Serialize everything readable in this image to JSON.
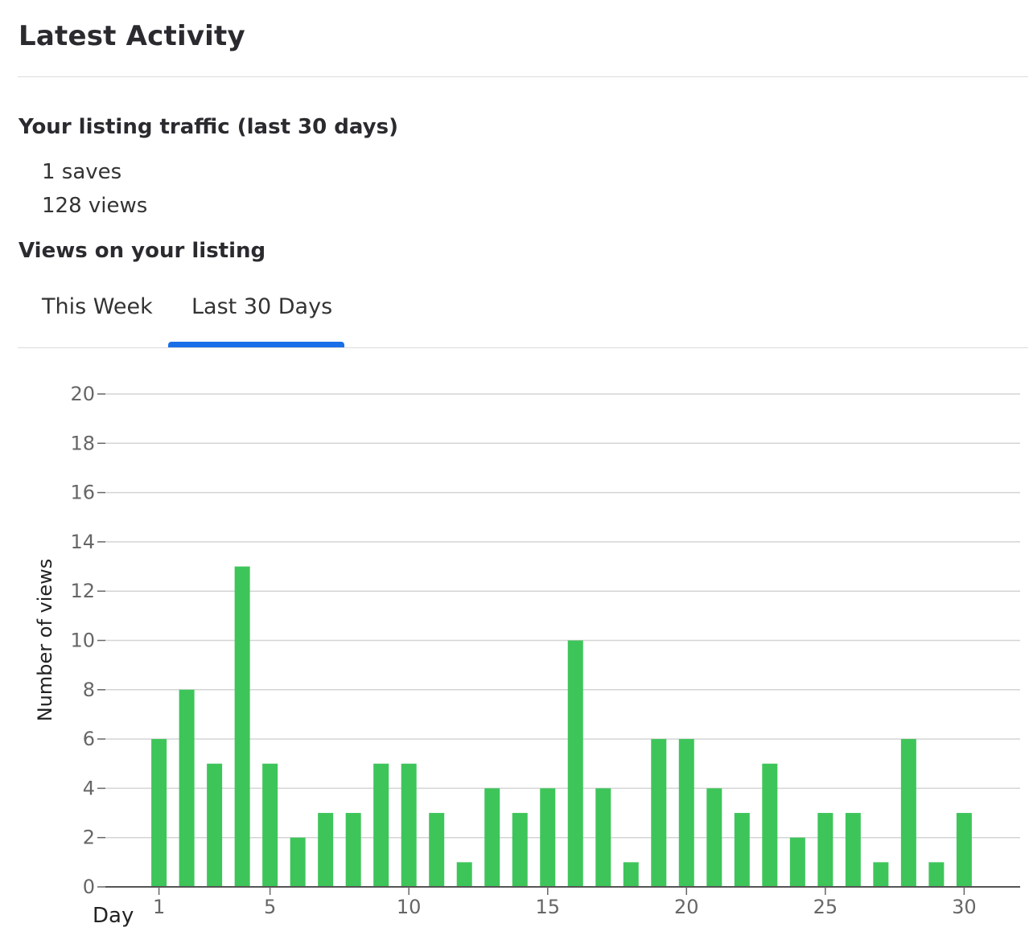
{
  "header": {
    "title": "Latest Activity"
  },
  "traffic": {
    "heading": "Your listing traffic (last 30 days)",
    "saves_text": "1 saves",
    "views_text": "128 views"
  },
  "views_section": {
    "heading": "Views on your listing"
  },
  "tabs": [
    {
      "label": "This Week",
      "selected": false
    },
    {
      "label": "Last 30 Days",
      "selected": true
    }
  ],
  "colors": {
    "bar": "#3ec55a",
    "tab_indicator": "#1a6fe8",
    "gridline": "#d4d4d4"
  },
  "chart_data": {
    "type": "bar",
    "x": [
      1,
      2,
      3,
      4,
      5,
      6,
      7,
      8,
      9,
      10,
      11,
      12,
      13,
      14,
      15,
      16,
      17,
      18,
      19,
      20,
      21,
      22,
      23,
      24,
      25,
      26,
      27,
      28,
      29,
      30
    ],
    "values": [
      6,
      8,
      5,
      13,
      5,
      2,
      3,
      3,
      5,
      5,
      3,
      1,
      4,
      3,
      4,
      10,
      4,
      1,
      6,
      6,
      4,
      3,
      5,
      2,
      3,
      3,
      1,
      6,
      1,
      3
    ],
    "xlabel": "Day",
    "ylabel": "Number of views",
    "ylim": [
      0,
      20
    ],
    "yticks": [
      0,
      2,
      4,
      6,
      8,
      10,
      12,
      14,
      16,
      18,
      20
    ],
    "xticks": [
      1,
      5,
      10,
      15,
      20,
      25,
      30
    ],
    "grid": true
  }
}
